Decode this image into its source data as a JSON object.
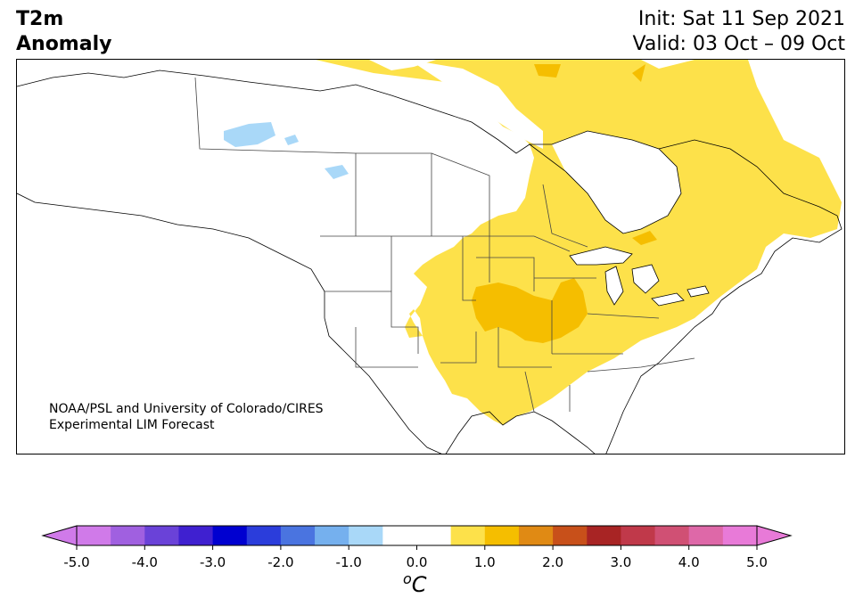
{
  "title": {
    "left_line1": "T2m",
    "left_line2": "Anomaly",
    "init": "Init: Sat 11 Sep 2021",
    "valid": "Valid: 03 Oct – 09 Oct"
  },
  "credit": {
    "line1": "NOAA/PSL and University of Colorado/CIRES",
    "line2": "Experimental LIM Forecast"
  },
  "map": {
    "region": "North America",
    "anomaly_regions": [
      {
        "level": "0.5 to 1.0",
        "color": "#fde14a",
        "area": "eastern Canada, Hudson Bay coast, central and eastern US"
      },
      {
        "level": "1.0 to 1.5",
        "color": "#f5be00",
        "area": "central US plains and Midwest"
      },
      {
        "level": "-1.0 to -0.5",
        "color": "#a9d8f8",
        "area": "small lakes in northwestern Canada"
      }
    ]
  },
  "colorbar": {
    "colors": [
      "#d07ae9",
      "#a060e0",
      "#6a42d8",
      "#3f20d0",
      "#0000d0",
      "#2b3ddb",
      "#4a74e0",
      "#75b0ee",
      "#a9d8f8",
      "#ffffff",
      "#ffffff",
      "#fde14a",
      "#f5be00",
      "#e08a14",
      "#c8501a",
      "#a82424",
      "#c0394a",
      "#d05074",
      "#de68a8",
      "#e87ad8"
    ],
    "left_extend_color": "#d07ae9",
    "right_extend_color": "#e87ad8",
    "ticks": [
      "-5.0",
      "-4.0",
      "-3.0",
      "-2.0",
      "-1.0",
      "0.0",
      "1.0",
      "2.0",
      "3.0",
      "4.0",
      "5.0"
    ],
    "unit_symbol": "o",
    "unit_letter": "C"
  }
}
